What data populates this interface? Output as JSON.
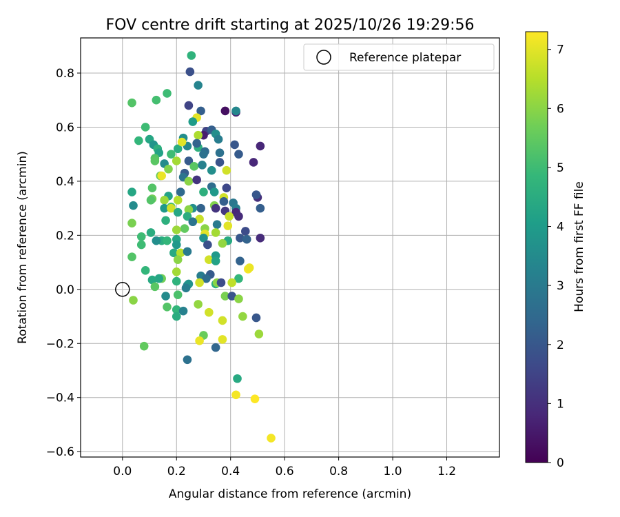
{
  "chart_data": {
    "type": "scatter",
    "title": "FOV centre drift starting at 2025/10/26 19:29:56",
    "xlabel": "Angular distance from reference (arcmin)",
    "ylabel": "Rotation from reference (arcmin)",
    "xlim": [
      -0.155,
      1.395
    ],
    "ylim": [
      -0.62,
      0.93
    ],
    "xticks": [
      0.0,
      0.2,
      0.4,
      0.6,
      0.8,
      1.0,
      1.2
    ],
    "yticks": [
      -0.6,
      -0.4,
      -0.2,
      0.0,
      0.2,
      0.4,
      0.6,
      0.8
    ],
    "xtick_labels": [
      "0.0",
      "0.2",
      "0.4",
      "0.6",
      "0.8",
      "1.0",
      "1.2"
    ],
    "ytick_labels": [
      "−0.6",
      "−0.4",
      "−0.2",
      "0.0",
      "0.2",
      "0.4",
      "0.6",
      "0.8"
    ],
    "grid": true,
    "legend": {
      "label": "Reference platepar",
      "location": "upper right"
    },
    "reference": {
      "x": 0.0,
      "y": 0.0
    },
    "colorbar": {
      "label": "Hours from first FF file",
      "min": 0,
      "max": 7.3,
      "ticks": [
        0,
        1,
        2,
        3,
        4,
        5,
        6,
        7
      ],
      "tick_labels": [
        "0",
        "1",
        "2",
        "3",
        "4",
        "5",
        "6",
        "7"
      ],
      "colormap": "viridis",
      "stops": [
        "#440154",
        "#482878",
        "#3e4989",
        "#31688e",
        "#26828e",
        "#1f9e89",
        "#35b779",
        "#6ece58",
        "#b5de2b",
        "#fde725"
      ]
    },
    "points": [
      [
        0.255,
        0.865,
        4.7
      ],
      [
        0.25,
        0.805,
        1.8
      ],
      [
        0.28,
        0.755,
        3.3
      ],
      [
        0.035,
        0.69,
        5.3
      ],
      [
        0.125,
        0.7,
        5.1
      ],
      [
        0.165,
        0.725,
        5.0
      ],
      [
        0.245,
        0.68,
        1.5
      ],
      [
        0.29,
        0.66,
        2.2
      ],
      [
        0.38,
        0.66,
        0.3
      ],
      [
        0.42,
        0.655,
        0.7
      ],
      [
        0.42,
        0.66,
        3.4
      ],
      [
        0.275,
        0.635,
        7.0
      ],
      [
        0.26,
        0.62,
        4.0
      ],
      [
        0.085,
        0.6,
        5.0
      ],
      [
        0.31,
        0.585,
        1.5
      ],
      [
        0.33,
        0.59,
        2.2
      ],
      [
        0.3,
        0.57,
        0.6
      ],
      [
        0.28,
        0.57,
        6.4
      ],
      [
        0.345,
        0.575,
        3.6
      ],
      [
        0.06,
        0.55,
        4.8
      ],
      [
        0.1,
        0.555,
        4.3
      ],
      [
        0.225,
        0.56,
        3.6
      ],
      [
        0.355,
        0.555,
        3.1
      ],
      [
        0.115,
        0.535,
        3.8
      ],
      [
        0.205,
        0.52,
        4.5
      ],
      [
        0.28,
        0.525,
        4.6
      ],
      [
        0.24,
        0.53,
        3.4
      ],
      [
        0.22,
        0.545,
        7.0
      ],
      [
        0.275,
        0.54,
        2.3
      ],
      [
        0.305,
        0.51,
        2.5
      ],
      [
        0.13,
        0.52,
        4.6
      ],
      [
        0.135,
        0.505,
        4.2
      ],
      [
        0.415,
        0.535,
        2.0
      ],
      [
        0.43,
        0.5,
        2.1
      ],
      [
        0.51,
        0.53,
        0.8
      ],
      [
        0.3,
        0.5,
        2.7
      ],
      [
        0.36,
        0.505,
        2.7
      ],
      [
        0.18,
        0.5,
        5.0
      ],
      [
        0.12,
        0.485,
        5.3
      ],
      [
        0.12,
        0.475,
        5.4
      ],
      [
        0.245,
        0.475,
        2.1
      ],
      [
        0.36,
        0.47,
        1.9
      ],
      [
        0.2,
        0.475,
        6.3
      ],
      [
        0.155,
        0.465,
        3.5
      ],
      [
        0.485,
        0.47,
        0.8
      ],
      [
        0.17,
        0.445,
        5.9
      ],
      [
        0.265,
        0.455,
        5.4
      ],
      [
        0.295,
        0.46,
        3.2
      ],
      [
        0.33,
        0.44,
        3.6
      ],
      [
        0.385,
        0.44,
        6.8
      ],
      [
        0.14,
        0.42,
        5.6
      ],
      [
        0.145,
        0.42,
        7.1
      ],
      [
        0.23,
        0.43,
        2.1
      ],
      [
        0.225,
        0.415,
        2.8
      ],
      [
        0.245,
        0.4,
        6.0
      ],
      [
        0.275,
        0.405,
        1.1
      ],
      [
        0.11,
        0.375,
        5.3
      ],
      [
        0.33,
        0.38,
        2.6
      ],
      [
        0.385,
        0.375,
        1.6
      ],
      [
        0.035,
        0.36,
        4.3
      ],
      [
        0.215,
        0.36,
        2.5
      ],
      [
        0.3,
        0.36,
        4.6
      ],
      [
        0.34,
        0.36,
        3.9
      ],
      [
        0.375,
        0.34,
        6.8
      ],
      [
        0.17,
        0.345,
        4.2
      ],
      [
        0.205,
        0.33,
        6.5
      ],
      [
        0.11,
        0.335,
        5.7
      ],
      [
        0.105,
        0.33,
        5.3
      ],
      [
        0.155,
        0.33,
        6.2
      ],
      [
        0.5,
        0.34,
        1.0
      ],
      [
        0.495,
        0.35,
        2.0
      ],
      [
        0.375,
        0.325,
        2.2
      ],
      [
        0.41,
        0.32,
        2.9
      ],
      [
        0.04,
        0.31,
        3.5
      ],
      [
        0.155,
        0.3,
        3.9
      ],
      [
        0.18,
        0.305,
        5.1
      ],
      [
        0.18,
        0.3,
        6.8
      ],
      [
        0.29,
        0.3,
        2.3
      ],
      [
        0.26,
        0.3,
        3.6
      ],
      [
        0.245,
        0.295,
        6.0
      ],
      [
        0.34,
        0.31,
        5.9
      ],
      [
        0.345,
        0.3,
        1.1
      ],
      [
        0.38,
        0.29,
        1.2
      ],
      [
        0.51,
        0.3,
        2.2
      ],
      [
        0.42,
        0.3,
        3.1
      ],
      [
        0.42,
        0.285,
        0.8
      ],
      [
        0.205,
        0.285,
        4.3
      ],
      [
        0.24,
        0.27,
        4.5
      ],
      [
        0.285,
        0.26,
        6.7
      ],
      [
        0.395,
        0.27,
        6.7
      ],
      [
        0.43,
        0.27,
        0.9
      ],
      [
        0.035,
        0.245,
        5.8
      ],
      [
        0.16,
        0.255,
        4.6
      ],
      [
        0.26,
        0.25,
        2.8
      ],
      [
        0.35,
        0.24,
        3.0
      ],
      [
        0.39,
        0.235,
        7.0
      ],
      [
        0.23,
        0.225,
        5.5
      ],
      [
        0.2,
        0.22,
        6.2
      ],
      [
        0.305,
        0.225,
        6.0
      ],
      [
        0.455,
        0.215,
        1.7
      ],
      [
        0.105,
        0.21,
        4.5
      ],
      [
        0.305,
        0.205,
        7.0
      ],
      [
        0.345,
        0.21,
        6.3
      ],
      [
        0.07,
        0.195,
        5.0
      ],
      [
        0.145,
        0.18,
        4.5
      ],
      [
        0.165,
        0.18,
        4.8
      ],
      [
        0.125,
        0.18,
        3.6
      ],
      [
        0.2,
        0.185,
        4.3
      ],
      [
        0.3,
        0.19,
        3.7
      ],
      [
        0.39,
        0.18,
        4.4
      ],
      [
        0.435,
        0.19,
        2.0
      ],
      [
        0.46,
        0.185,
        2.3
      ],
      [
        0.51,
        0.19,
        0.9
      ],
      [
        0.07,
        0.165,
        5.0
      ],
      [
        0.2,
        0.165,
        3.9
      ],
      [
        0.37,
        0.17,
        6.1
      ],
      [
        0.315,
        0.165,
        1.8
      ],
      [
        0.19,
        0.135,
        4.4
      ],
      [
        0.215,
        0.135,
        6.5
      ],
      [
        0.24,
        0.14,
        3.0
      ],
      [
        0.035,
        0.12,
        5.3
      ],
      [
        0.205,
        0.11,
        6.0
      ],
      [
        0.32,
        0.11,
        6.8
      ],
      [
        0.345,
        0.125,
        3.9
      ],
      [
        0.345,
        0.105,
        4.2
      ],
      [
        0.435,
        0.105,
        2.3
      ],
      [
        0.085,
        0.07,
        4.8
      ],
      [
        0.465,
        0.075,
        7.2
      ],
      [
        0.47,
        0.08,
        7.1
      ],
      [
        0.2,
        0.065,
        6.3
      ],
      [
        0.325,
        0.055,
        2.1
      ],
      [
        0.145,
        0.04,
        5.7
      ],
      [
        0.135,
        0.04,
        4.3
      ],
      [
        0.11,
        0.035,
        4.4
      ],
      [
        0.29,
        0.05,
        3.1
      ],
      [
        0.31,
        0.04,
        2.6
      ],
      [
        0.43,
        0.04,
        4.8
      ],
      [
        0.2,
        0.03,
        4.7
      ],
      [
        0.12,
        0.01,
        5.4
      ],
      [
        0.24,
        0.015,
        3.4
      ],
      [
        0.245,
        0.02,
        3.7
      ],
      [
        0.285,
        0.025,
        6.8
      ],
      [
        0.345,
        0.02,
        4.6
      ],
      [
        0.35,
        0.025,
        6.0
      ],
      [
        0.365,
        0.025,
        1.7
      ],
      [
        0.405,
        0.025,
        6.6
      ],
      [
        0.235,
        0.005,
        3.1
      ],
      [
        0.205,
        -0.02,
        5.2
      ],
      [
        0.38,
        -0.025,
        5.8
      ],
      [
        0.405,
        -0.025,
        1.9
      ],
      [
        0.43,
        -0.035,
        6.0
      ],
      [
        0.04,
        -0.04,
        6.0
      ],
      [
        0.16,
        -0.025,
        3.5
      ],
      [
        0.165,
        -0.065,
        5.3
      ],
      [
        0.2,
        -0.075,
        4.8
      ],
      [
        0.225,
        -0.08,
        3.2
      ],
      [
        0.2,
        -0.1,
        4.5
      ],
      [
        0.28,
        -0.055,
        6.1
      ],
      [
        0.32,
        -0.085,
        6.8
      ],
      [
        0.37,
        -0.115,
        6.8
      ],
      [
        0.445,
        -0.1,
        6.1
      ],
      [
        0.495,
        -0.105,
        2.0
      ],
      [
        0.3,
        -0.17,
        5.6
      ],
      [
        0.37,
        -0.185,
        7.0
      ],
      [
        0.285,
        -0.19,
        7.1
      ],
      [
        0.505,
        -0.165,
        6.2
      ],
      [
        0.08,
        -0.21,
        5.5
      ],
      [
        0.345,
        -0.215,
        2.4
      ],
      [
        0.24,
        -0.26,
        2.7
      ],
      [
        0.425,
        -0.33,
        4.4
      ],
      [
        0.42,
        -0.39,
        7.2
      ],
      [
        0.49,
        -0.405,
        7.3
      ],
      [
        0.55,
        -0.55,
        7.2
      ]
    ]
  }
}
